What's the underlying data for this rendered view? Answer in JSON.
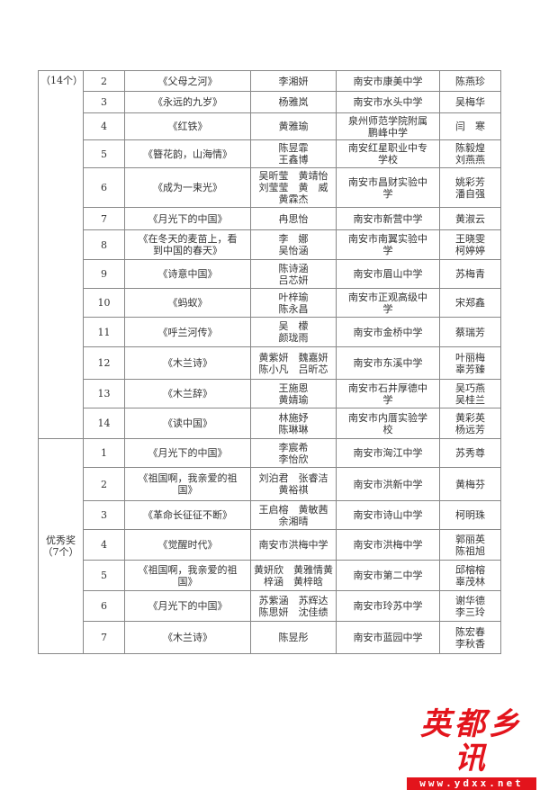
{
  "groups": [
    {
      "label": "（14个）",
      "rows": [
        [
          "2",
          "《父母之河》",
          "李湘妍",
          "南安市康美中学",
          "陈燕珍"
        ],
        [
          "3",
          "《永远的九岁》",
          "杨雅岚",
          "南安市水头中学",
          "吴梅华"
        ],
        [
          "4",
          "《红铁》",
          "黄雅瑜",
          "泉州师范学院附属\n鹏峰中学",
          "闫　寒"
        ],
        [
          "5",
          "《簪花韵，山海情》",
          "陈昱霏\n王鑫博",
          "南安红星职业中专\n学校",
          "陈毅煌\n刘燕燕"
        ],
        [
          "6",
          "《成为一束光》",
          "吴昕莹　黄靖怡\n刘莹莹　黄　威\n黄霖杰",
          "南安市昌财实验中\n学",
          "姚彩芳\n潘自强"
        ],
        [
          "7",
          "《月光下的中国》",
          "冉思怡",
          "南安市新营中学",
          "黄淑云"
        ],
        [
          "8",
          "《在冬天的麦苗上，看\n到中国的春天》",
          "李　娜\n吴怡涵",
          "南安市南翼实验中\n学",
          "王晓雯\n柯婷婷"
        ],
        [
          "9",
          "《诗意中国》",
          "陈诗涵\n吕芯妍",
          "南安市眉山中学",
          "苏梅青"
        ],
        [
          "10",
          "《蚂蚁》",
          "叶梓瑜\n陈永昌",
          "南安市正观高级中\n学",
          "宋郑鑫"
        ],
        [
          "11",
          "《呼兰河传》",
          "吴　檬\n颜珑雨",
          "南安市金桥中学",
          "蔡瑞芳"
        ],
        [
          "12",
          "《木兰诗》",
          "黄紫妍　魏嘉妍\n陈小凡　吕昕芯",
          "南安市东溪中学",
          "叶丽梅\n辜芳臻"
        ],
        [
          "13",
          "《木兰辞》",
          "王施恩\n黄婧瑜",
          "南安市石井厚德中\n学",
          "吴巧燕\n吴桂兰"
        ],
        [
          "14",
          "《读中国》",
          "林施妤\n陈琳琳",
          "南安市内厝实验学\n校",
          "黄彩英\n杨远芳"
        ]
      ]
    },
    {
      "label": "优秀奖\n（7个）",
      "rows": [
        [
          "1",
          "《月光下的中国》",
          "李宸希\n李怡欣",
          "南安市洶江中学",
          "苏秀尊"
        ],
        [
          "2",
          "《祖国啊，我亲爱的祖\n国》",
          "刘泊君　张睿洁\n黄裕祺",
          "南安市洪新中学",
          "黄梅芬"
        ],
        [
          "3",
          "《革命长征征不断》",
          "王启榕　黄敏茜\n余湘晴",
          "南安市诗山中学",
          "柯明珠"
        ],
        [
          "4",
          "《觉醒时代》",
          "南安市洪梅中学",
          "南安市洪梅中学",
          "郭丽英\n陈祖旭"
        ],
        [
          "5",
          "《祖国啊，我亲爱的祖\n国》",
          "黄妍欣　黄雅情黄\n梓涵　黄梓晗",
          "南安市第二中学",
          "邱榕榕\n辜茂林"
        ],
        [
          "6",
          "《月光下的中国》",
          "苏紫涵　苏辉达\n陈思妍　沈佳绩",
          "南安市玲苏中学",
          "谢华德\n李三玲"
        ],
        [
          "7",
          "《木兰诗》",
          "陈昱彤",
          "南安市蓝园中学",
          "陈宏春\n李秋香"
        ]
      ]
    }
  ],
  "logo": {
    "text": "英都乡讯",
    "url": "www.ydxx.net",
    "color": "#e3141c"
  }
}
